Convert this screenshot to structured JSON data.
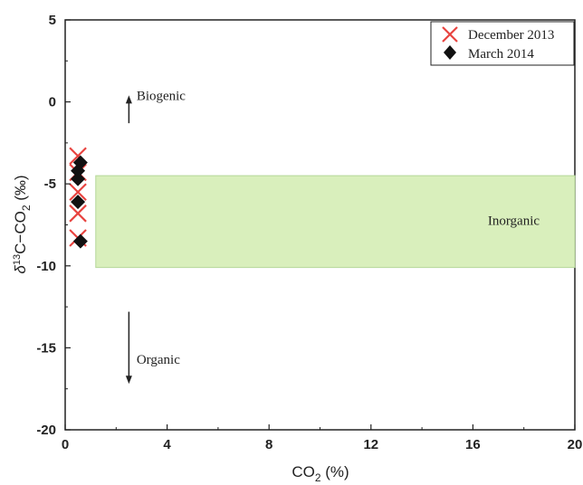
{
  "chart_data": {
    "type": "scatter",
    "xlabel_main": "CO",
    "xlabel_sub": "2",
    "xlabel_tail": " (%)",
    "ylabel_delta": "δ",
    "ylabel_sup": "13",
    "ylabel_main": "C−CO",
    "ylabel_sub": "2",
    "ylabel_tail": " (‰)",
    "xlim": [
      0,
      20
    ],
    "ylim": [
      -20,
      5
    ],
    "x_ticks": [
      "0",
      "4",
      "8",
      "12",
      "16",
      "20"
    ],
    "x_tick_values": [
      0,
      4,
      8,
      12,
      16,
      20
    ],
    "y_ticks": [
      "5",
      "0",
      "-5",
      "-10",
      "-15",
      "-20"
    ],
    "y_tick_values": [
      5,
      0,
      -5,
      -10,
      -15,
      -20
    ],
    "grid": false,
    "legend_position": "top-right",
    "series": [
      {
        "name": "December 2013",
        "marker": "x",
        "color": "#e8433f",
        "points": [
          {
            "x": 0.5,
            "y": -3.3
          },
          {
            "x": 0.5,
            "y": -4.3
          },
          {
            "x": 0.5,
            "y": -5.5
          },
          {
            "x": 0.5,
            "y": -6.8
          },
          {
            "x": 0.5,
            "y": -8.3
          }
        ]
      },
      {
        "name": "March 2014",
        "marker": "diamond",
        "color": "#111111",
        "points": [
          {
            "x": 0.6,
            "y": -3.7
          },
          {
            "x": 0.5,
            "y": -4.2
          },
          {
            "x": 0.5,
            "y": -4.7
          },
          {
            "x": 0.5,
            "y": -6.1
          },
          {
            "x": 0.6,
            "y": -8.5
          }
        ]
      }
    ],
    "region": {
      "label": "Inorganic",
      "x_range": [
        1.2,
        20
      ],
      "y_range": [
        -10.1,
        -4.5
      ],
      "color": "#d9efbc",
      "border": "#b6d89a"
    },
    "annotations": {
      "biogenic": {
        "text": "Biogenic",
        "arrow_x": 2.5,
        "arrow_from_y": -1.3,
        "arrow_to_y": 0.4,
        "label_x": 2.8,
        "label_y": 0.4
      },
      "organic": {
        "text": "Organic",
        "arrow_x": 2.5,
        "arrow_from_y": -12.8,
        "arrow_to_y": -17.2,
        "label_x": 2.8,
        "label_y": -15.7
      }
    }
  }
}
